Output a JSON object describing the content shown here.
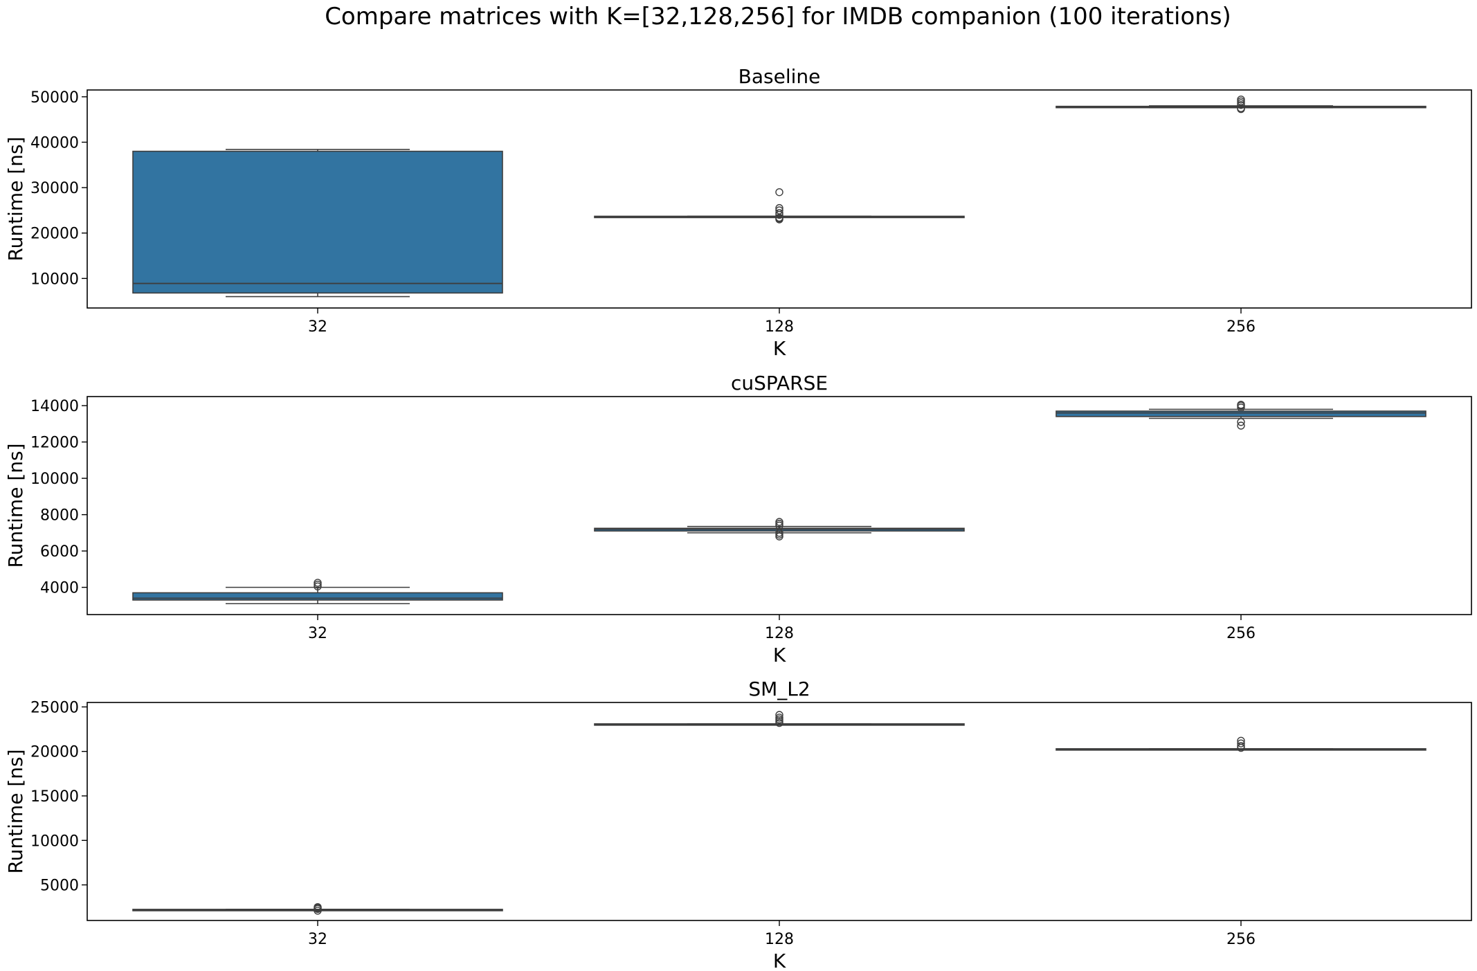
{
  "figure": {
    "title": "Compare matrices with K=[32,128,256] for IMDB companion (100 iterations)"
  },
  "colors": {
    "box_fill": "#3274a1",
    "box_edge": "#3d3d3d",
    "axis": "#000000",
    "background": "#ffffff"
  },
  "chart_data": [
    {
      "type": "box",
      "title": "Baseline",
      "xlabel": "K",
      "ylabel": "Runtime [ns]",
      "categories": [
        "32",
        "128",
        "256"
      ],
      "ylim": [
        3500,
        51500
      ],
      "yticks": [
        10000,
        20000,
        30000,
        40000,
        50000
      ],
      "boxes": [
        {
          "category": "32",
          "whisker_low": 6000,
          "q1": 6800,
          "median": 8900,
          "q3": 38000,
          "whisker_high": 38400,
          "outliers": []
        },
        {
          "category": "128",
          "whisker_low": 23500,
          "q1": 23500,
          "median": 23600,
          "q3": 23700,
          "whisker_high": 23700,
          "outliers": [
            23000,
            23200,
            23400,
            24000,
            24400,
            25000,
            25500,
            29000
          ]
        },
        {
          "category": "256",
          "whisker_low": 47600,
          "q1": 47700,
          "median": 47800,
          "q3": 47900,
          "whisker_high": 48000,
          "outliers": [
            47300,
            47500,
            48200,
            48600,
            49000,
            49400
          ]
        }
      ]
    },
    {
      "type": "box",
      "title": "cuSPARSE",
      "xlabel": "K",
      "ylabel": "Runtime [ns]",
      "categories": [
        "32",
        "128",
        "256"
      ],
      "ylim": [
        2500,
        14500
      ],
      "yticks": [
        4000,
        6000,
        8000,
        10000,
        12000,
        14000
      ],
      "boxes": [
        {
          "category": "32",
          "whisker_low": 3100,
          "q1": 3300,
          "median": 3400,
          "q3": 3700,
          "whisker_high": 4000,
          "outliers": [
            4050,
            4150,
            4250
          ]
        },
        {
          "category": "128",
          "whisker_low": 7000,
          "q1": 7100,
          "median": 7200,
          "q3": 7250,
          "whisker_high": 7350,
          "outliers": [
            6800,
            6900,
            7000,
            7400,
            7500,
            7600
          ]
        },
        {
          "category": "256",
          "whisker_low": 13300,
          "q1": 13400,
          "median": 13600,
          "q3": 13700,
          "whisker_high": 13800,
          "outliers": [
            12900,
            13100,
            13900,
            14000,
            14050
          ]
        }
      ]
    },
    {
      "type": "box",
      "title": "SM_L2",
      "xlabel": "K",
      "ylabel": "Runtime [ns]",
      "categories": [
        "32",
        "128",
        "256"
      ],
      "ylim": [
        1000,
        25500
      ],
      "yticks": [
        5000,
        10000,
        15000,
        20000,
        25000
      ],
      "boxes": [
        {
          "category": "32",
          "whisker_low": 2150,
          "q1": 2150,
          "median": 2200,
          "q3": 2250,
          "whisker_high": 2250,
          "outliers": [
            2100,
            2300,
            2400,
            2500
          ]
        },
        {
          "category": "128",
          "whisker_low": 23000,
          "q1": 23000,
          "median": 23050,
          "q3": 23100,
          "whisker_high": 23100,
          "outliers": [
            23200,
            23400,
            23600,
            23800,
            24100
          ]
        },
        {
          "category": "256",
          "whisker_low": 20200,
          "q1": 20200,
          "median": 20250,
          "q3": 20300,
          "whisker_high": 20300,
          "outliers": [
            20400,
            20600,
            20900,
            21200
          ]
        }
      ]
    }
  ]
}
